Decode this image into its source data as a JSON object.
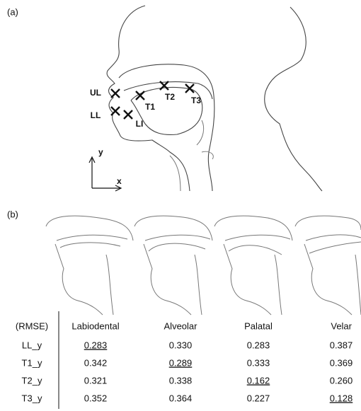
{
  "panel_a": {
    "label": "(a)",
    "markers": [
      {
        "label": "UL"
      },
      {
        "label": "LL"
      },
      {
        "label": "LI"
      },
      {
        "label": "T1"
      },
      {
        "label": "T2"
      },
      {
        "label": "T3"
      }
    ],
    "axis_x": "x",
    "axis_y": "y"
  },
  "panel_b": {
    "label": "(b)",
    "table": {
      "header": [
        "(RMSE)",
        "Labiodental",
        "Alveolar",
        "Palatal",
        "Velar"
      ],
      "rows": [
        {
          "label": "LL_y",
          "values": [
            "0.283",
            "0.330",
            "0.283",
            "0.387"
          ],
          "underlined": 0
        },
        {
          "label": "T1_y",
          "values": [
            "0.342",
            "0.289",
            "0.333",
            "0.369"
          ],
          "underlined": 1
        },
        {
          "label": "T2_y",
          "values": [
            "0.321",
            "0.338",
            "0.162",
            "0.260"
          ],
          "underlined": 2
        },
        {
          "label": "T3_y",
          "values": [
            "0.352",
            "0.364",
            "0.227",
            "0.128"
          ],
          "underlined": 3
        }
      ]
    }
  }
}
